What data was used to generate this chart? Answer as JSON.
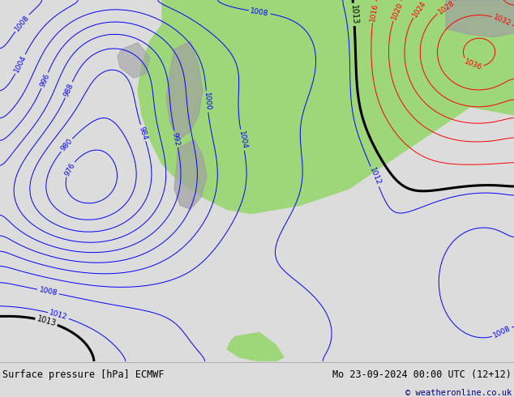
{
  "title_left": "Surface pressure [hPa] ECMWF",
  "title_right": "Mo 23-09-2024 00:00 UTC (12+12)",
  "copyright": "© weatheronline.co.uk",
  "bg_color": "#dcdcdc",
  "land_color": "#9ed67a",
  "mountain_color": "#a0a0a0",
  "ocean_color": "#dcdcdc",
  "fig_width": 6.34,
  "fig_height": 4.9,
  "dpi": 100,
  "caption_bg": "#e8e8e8"
}
